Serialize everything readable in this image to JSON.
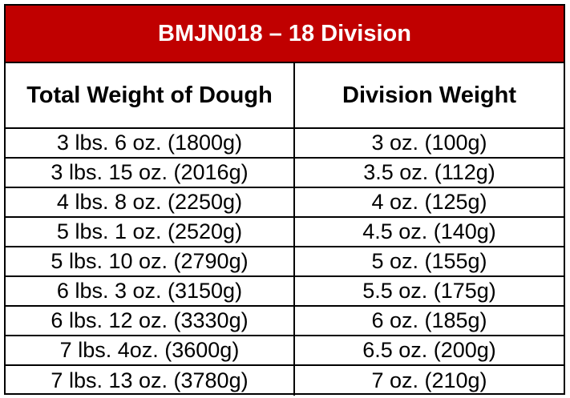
{
  "table": {
    "title": "BMJN018 – 18 Division",
    "columns": [
      "Total Weight of Dough",
      "Division Weight"
    ],
    "rows": [
      [
        "3 lbs. 6 oz. (1800g)",
        "3 oz. (100g)"
      ],
      [
        "3 lbs. 15 oz. (2016g)",
        "3.5 oz. (112g)"
      ],
      [
        "4 lbs. 8 oz. (2250g)",
        "4 oz. (125g)"
      ],
      [
        "5 lbs. 1 oz. (2520g)",
        "4.5 oz. (140g)"
      ],
      [
        "5 lbs. 10 oz. (2790g)",
        "5 oz. (155g)"
      ],
      [
        "6 lbs. 3 oz. (3150g)",
        "5.5 oz. (175g)"
      ],
      [
        "6 lbs. 12 oz. (3330g)",
        "6 oz. (185g)"
      ],
      [
        "7 lbs. 4oz. (3600g)",
        "6.5 oz. (200g)"
      ],
      [
        "7 lbs. 13 oz. (3780g)",
        "7 oz. (210g)"
      ]
    ]
  },
  "colors": {
    "title_background": "#c00000",
    "title_text": "#ffffff",
    "border": "#000000"
  }
}
